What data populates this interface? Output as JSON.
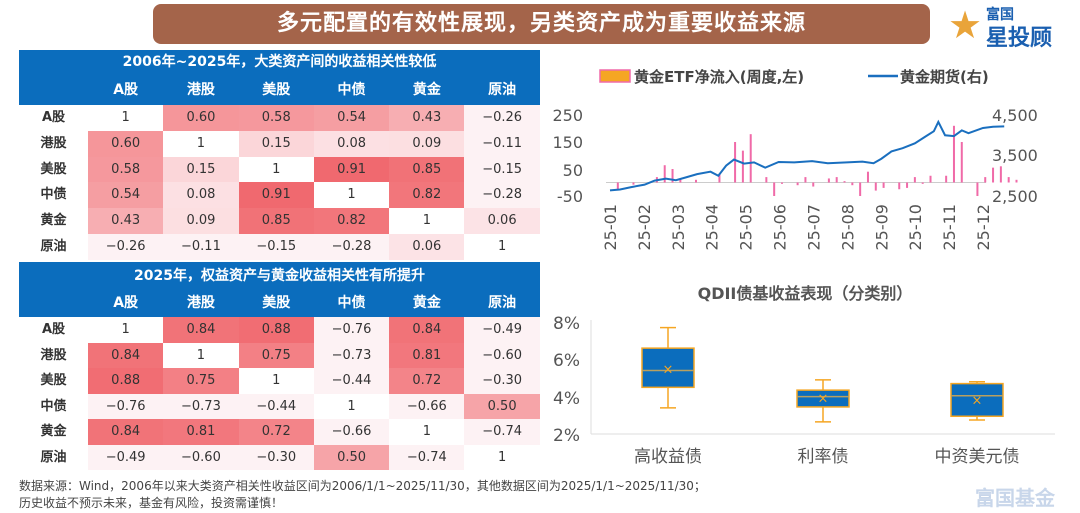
{
  "banner": {
    "title": "多元配置的有效性展现，另类资产成为重要收益来源"
  },
  "logo": {
    "line1": "富国",
    "line2": "星投顾",
    "star_text": "星"
  },
  "watermark": "富国基金",
  "chart_data": [
    {
      "type": "table",
      "name": "corr1",
      "title": "2006年~2025年，大类资产间的收益相关性较低",
      "columns": [
        "A股",
        "港股",
        "美股",
        "中债",
        "黄金",
        "原油"
      ],
      "rows": [
        {
          "label": "A股",
          "values": [
            "1",
            "0.60",
            "0.58",
            "0.54",
            "0.43",
            "−0.26"
          ]
        },
        {
          "label": "港股",
          "values": [
            "0.60",
            "1",
            "0.15",
            "0.08",
            "0.09",
            "−0.11"
          ]
        },
        {
          "label": "美股",
          "values": [
            "0.58",
            "0.15",
            "1",
            "0.91",
            "0.85",
            "−0.15"
          ]
        },
        {
          "label": "中债",
          "values": [
            "0.54",
            "0.08",
            "0.91",
            "1",
            "0.82",
            "−0.28"
          ]
        },
        {
          "label": "黄金",
          "values": [
            "0.43",
            "0.09",
            "0.85",
            "0.82",
            "1",
            "0.06"
          ]
        },
        {
          "label": "原油",
          "values": [
            "−0.26",
            "−0.11",
            "−0.15",
            "−0.28",
            "0.06",
            "1"
          ]
        }
      ]
    },
    {
      "type": "table",
      "name": "corr2",
      "title": "2025年，权益资产与黄金收益相关性有所提升",
      "columns": [
        "A股",
        "港股",
        "美股",
        "中债",
        "黄金",
        "原油"
      ],
      "rows": [
        {
          "label": "A股",
          "values": [
            "1",
            "0.84",
            "0.88",
            "−0.76",
            "0.84",
            "−0.49"
          ]
        },
        {
          "label": "港股",
          "values": [
            "0.84",
            "1",
            "0.75",
            "−0.73",
            "0.81",
            "−0.60"
          ]
        },
        {
          "label": "美股",
          "values": [
            "0.88",
            "0.75",
            "1",
            "−0.44",
            "0.72",
            "−0.30"
          ]
        },
        {
          "label": "中债",
          "values": [
            "−0.76",
            "−0.73",
            "−0.44",
            "1",
            "−0.66",
            "0.50"
          ]
        },
        {
          "label": "黄金",
          "values": [
            "0.84",
            "0.81",
            "0.72",
            "−0.66",
            "1",
            "−0.74"
          ]
        },
        {
          "label": "原油",
          "values": [
            "−0.49",
            "−0.60",
            "−0.30",
            "0.50",
            "−0.74",
            "1"
          ]
        }
      ]
    },
    {
      "type": "bar+line",
      "legend": [
        "黄金ETF净流入(周度,左)",
        "黄金期货(右)"
      ],
      "legend_placement": "top",
      "bar_color": "#f06aa8",
      "bar_legend_fill": "#f5a623",
      "line_color": "#1a6fbf",
      "ylim_left": [
        -50,
        250
      ],
      "yticks_left": [
        "250",
        "150",
        "50",
        "-50"
      ],
      "ylim_right": [
        2500,
        4500
      ],
      "yticks_right": [
        "4,500",
        "3,500",
        "2,500"
      ],
      "xticks": [
        "25-01",
        "25-02",
        "25-03",
        "25-04",
        "25-05",
        "25-06",
        "25-07",
        "25-08",
        "25-09",
        "25-10",
        "25-11",
        "25-12"
      ],
      "flows": [
        [
          "2025-01-08",
          -25
        ],
        [
          "2025-01-22",
          -8
        ],
        [
          "2025-02-12",
          20
        ],
        [
          "2025-02-19",
          64
        ],
        [
          "2025-02-26",
          50
        ],
        [
          "2025-03-05",
          15
        ],
        [
          "2025-03-19",
          10
        ],
        [
          "2025-04-09",
          33
        ],
        [
          "2025-04-23",
          150
        ],
        [
          "2025-04-30",
          118
        ],
        [
          "2025-05-07",
          179
        ],
        [
          "2025-05-21",
          20
        ],
        [
          "2025-05-28",
          -50
        ],
        [
          "2025-06-04",
          -5
        ],
        [
          "2025-06-18",
          -10
        ],
        [
          "2025-06-25",
          20
        ],
        [
          "2025-07-02",
          -15
        ],
        [
          "2025-07-16",
          15
        ],
        [
          "2025-07-23",
          20
        ],
        [
          "2025-07-30",
          5
        ],
        [
          "2025-08-06",
          -10
        ],
        [
          "2025-08-13",
          -50
        ],
        [
          "2025-08-20",
          40
        ],
        [
          "2025-08-27",
          -30
        ],
        [
          "2025-09-03",
          -20
        ],
        [
          "2025-09-17",
          -25
        ],
        [
          "2025-09-24",
          -20
        ],
        [
          "2025-10-01",
          20
        ],
        [
          "2025-10-08",
          -5
        ],
        [
          "2025-10-15",
          25
        ],
        [
          "2025-10-29",
          25
        ],
        [
          "2025-11-05",
          210
        ],
        [
          "2025-11-12",
          150
        ],
        [
          "2025-11-26",
          -50
        ],
        [
          "2025-12-03",
          20
        ],
        [
          "2025-12-10",
          55
        ],
        [
          "2025-12-17",
          60
        ],
        [
          "2025-12-24",
          20
        ],
        [
          "2025-12-31",
          10
        ]
      ],
      "price": [
        [
          "2025-01-01",
          2640
        ],
        [
          "2025-01-10",
          2660
        ],
        [
          "2025-01-20",
          2720
        ],
        [
          "2025-02-01",
          2780
        ],
        [
          "2025-02-10",
          2880
        ],
        [
          "2025-02-20",
          2930
        ],
        [
          "2025-03-01",
          2890
        ],
        [
          "2025-03-10",
          2960
        ],
        [
          "2025-03-20",
          3040
        ],
        [
          "2025-04-01",
          3100
        ],
        [
          "2025-04-08",
          3000
        ],
        [
          "2025-04-15",
          3250
        ],
        [
          "2025-04-22",
          3400
        ],
        [
          "2025-05-01",
          3300
        ],
        [
          "2025-05-10",
          3330
        ],
        [
          "2025-05-20",
          3200
        ],
        [
          "2025-06-01",
          3340
        ],
        [
          "2025-06-15",
          3330
        ],
        [
          "2025-07-01",
          3360
        ],
        [
          "2025-07-15",
          3310
        ],
        [
          "2025-08-01",
          3330
        ],
        [
          "2025-08-15",
          3350
        ],
        [
          "2025-08-25",
          3310
        ],
        [
          "2025-09-01",
          3420
        ],
        [
          "2025-09-10",
          3600
        ],
        [
          "2025-09-20",
          3680
        ],
        [
          "2025-10-01",
          3800
        ],
        [
          "2025-10-10",
          3960
        ],
        [
          "2025-10-18",
          4100
        ],
        [
          "2025-10-22",
          4330
        ],
        [
          "2025-10-28",
          4000
        ],
        [
          "2025-11-05",
          3980
        ],
        [
          "2025-11-12",
          4120
        ],
        [
          "2025-11-18",
          4050
        ],
        [
          "2025-12-01",
          4180
        ],
        [
          "2025-12-10",
          4210
        ],
        [
          "2025-12-20",
          4220
        ]
      ]
    },
    {
      "type": "boxplot",
      "title": "QDII债基收益表现（分类别）",
      "ylim": [
        2,
        8
      ],
      "yticks": [
        "8%",
        "6%",
        "4%",
        "2%"
      ],
      "box_color": "#0b6dbd",
      "edge_color": "#f5a623",
      "categories": [
        "高收益债",
        "利率债",
        "中资美元债"
      ],
      "boxes": [
        {
          "min": 3.4,
          "q1": 4.5,
          "median": 5.4,
          "q3": 6.6,
          "max": 7.7,
          "mean": 5.5
        },
        {
          "min": 2.65,
          "q1": 3.45,
          "median": 4.0,
          "q3": 4.35,
          "max": 4.9,
          "mean": 3.95
        },
        {
          "min": 2.75,
          "q1": 2.95,
          "median": 4.05,
          "q3": 4.7,
          "max": 4.8,
          "mean": 3.85
        }
      ]
    }
  ],
  "footer": {
    "line1": "数据来源：Wind，2006年以来大类资产相关性收益区间为2006/1/1~2025/11/30，其他数据区间为2025/1/1~2025/11/30；",
    "line2": "历史收益不预示未来，基金有风险，投资需谨慎！"
  }
}
